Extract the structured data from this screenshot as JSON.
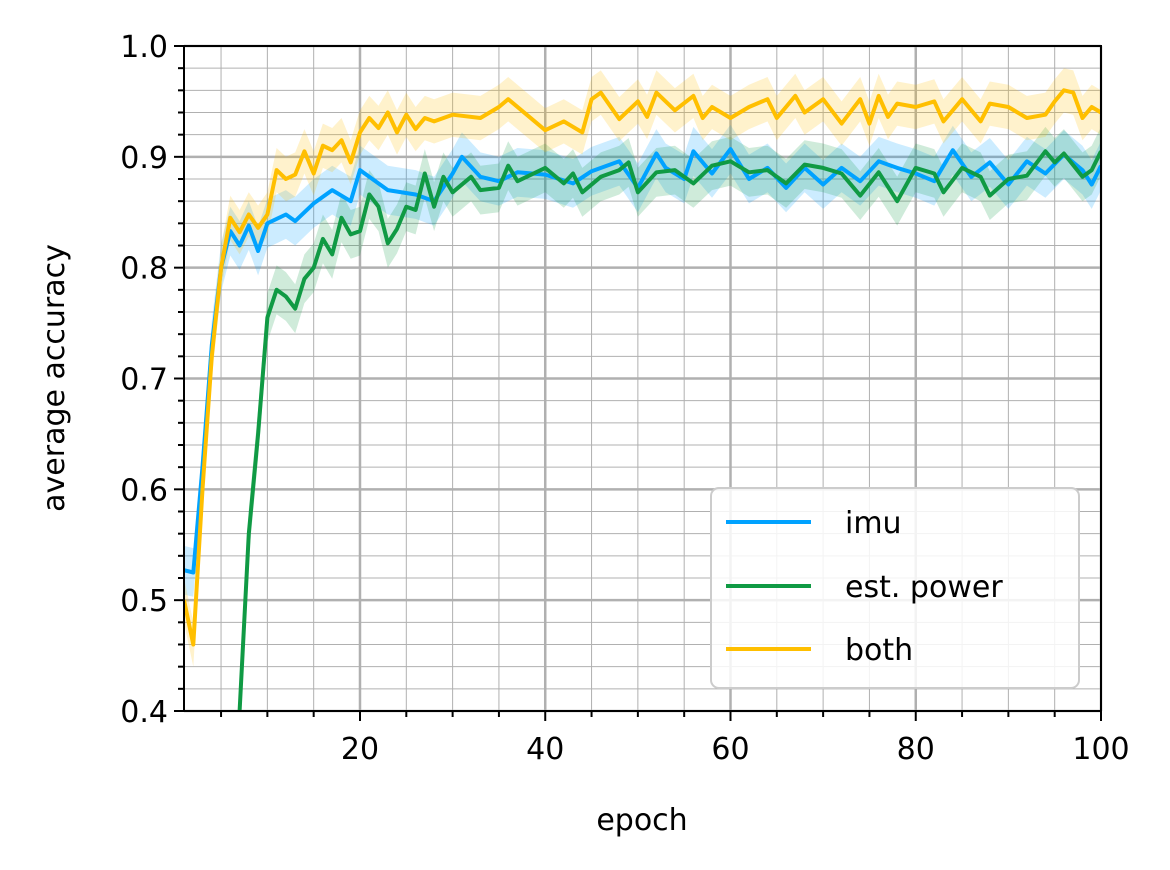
{
  "chart_data": {
    "type": "line",
    "title": "",
    "xlabel": "epoch",
    "ylabel": "average accuracy",
    "xlim": [
      1,
      100
    ],
    "ylim": [
      0.4,
      1.0
    ],
    "x_ticks": [
      20,
      40,
      60,
      80,
      100
    ],
    "x_tick_labels": [
      "20",
      "40",
      "60",
      "80",
      "100"
    ],
    "y_ticks": [
      0.4,
      0.5,
      0.6,
      0.7,
      0.8,
      0.9,
      1.0
    ],
    "y_tick_labels": [
      "0.4",
      "0.5",
      "0.6",
      "0.7",
      "0.8",
      "0.9",
      "1.0"
    ],
    "grid": true,
    "minor_grid": true,
    "legend_position": "bottom-right",
    "series": [
      {
        "name": "imu",
        "color": "#00a2ff",
        "band_width": 0.022,
        "points": [
          [
            1,
            0.527
          ],
          [
            2,
            0.525
          ],
          [
            3,
            0.62
          ],
          [
            4,
            0.73
          ],
          [
            5,
            0.8
          ],
          [
            6,
            0.833
          ],
          [
            7,
            0.82
          ],
          [
            8,
            0.838
          ],
          [
            9,
            0.815
          ],
          [
            10,
            0.84
          ],
          [
            12,
            0.848
          ],
          [
            13,
            0.842
          ],
          [
            15,
            0.858
          ],
          [
            17,
            0.87
          ],
          [
            19,
            0.86
          ],
          [
            20,
            0.888
          ],
          [
            23,
            0.87
          ],
          [
            26,
            0.866
          ],
          [
            28,
            0.86
          ],
          [
            30,
            0.885
          ],
          [
            31,
            0.9
          ],
          [
            33,
            0.882
          ],
          [
            35,
            0.878
          ],
          [
            37,
            0.886
          ],
          [
            40,
            0.884
          ],
          [
            43,
            0.876
          ],
          [
            45,
            0.887
          ],
          [
            48,
            0.896
          ],
          [
            50,
            0.872
          ],
          [
            52,
            0.903
          ],
          [
            53,
            0.89
          ],
          [
            55,
            0.88
          ],
          [
            56,
            0.905
          ],
          [
            58,
            0.885
          ],
          [
            60,
            0.907
          ],
          [
            62,
            0.88
          ],
          [
            64,
            0.89
          ],
          [
            66,
            0.872
          ],
          [
            68,
            0.89
          ],
          [
            70,
            0.875
          ],
          [
            72,
            0.89
          ],
          [
            74,
            0.878
          ],
          [
            76,
            0.896
          ],
          [
            78,
            0.89
          ],
          [
            80,
            0.885
          ],
          [
            82,
            0.878
          ],
          [
            84,
            0.906
          ],
          [
            86,
            0.882
          ],
          [
            88,
            0.895
          ],
          [
            90,
            0.875
          ],
          [
            92,
            0.896
          ],
          [
            94,
            0.885
          ],
          [
            96,
            0.902
          ],
          [
            98,
            0.888
          ],
          [
            99,
            0.875
          ],
          [
            100,
            0.892
          ]
        ]
      },
      {
        "name": "est. power",
        "color": "#109a44",
        "band_width": 0.022,
        "points": [
          [
            7,
            0.4
          ],
          [
            8,
            0.56
          ],
          [
            9,
            0.65
          ],
          [
            10,
            0.755
          ],
          [
            11,
            0.78
          ],
          [
            12,
            0.774
          ],
          [
            13,
            0.763
          ],
          [
            14,
            0.79
          ],
          [
            15,
            0.8
          ],
          [
            16,
            0.826
          ],
          [
            17,
            0.812
          ],
          [
            18,
            0.845
          ],
          [
            19,
            0.83
          ],
          [
            20,
            0.833
          ],
          [
            21,
            0.866
          ],
          [
            22,
            0.855
          ],
          [
            23,
            0.822
          ],
          [
            24,
            0.835
          ],
          [
            25,
            0.855
          ],
          [
            26,
            0.852
          ],
          [
            27,
            0.885
          ],
          [
            28,
            0.855
          ],
          [
            29,
            0.882
          ],
          [
            30,
            0.868
          ],
          [
            32,
            0.882
          ],
          [
            33,
            0.87
          ],
          [
            35,
            0.872
          ],
          [
            36,
            0.892
          ],
          [
            37,
            0.878
          ],
          [
            40,
            0.89
          ],
          [
            42,
            0.876
          ],
          [
            43,
            0.885
          ],
          [
            44,
            0.868
          ],
          [
            46,
            0.882
          ],
          [
            48,
            0.888
          ],
          [
            49,
            0.895
          ],
          [
            50,
            0.868
          ],
          [
            52,
            0.886
          ],
          [
            54,
            0.888
          ],
          [
            56,
            0.876
          ],
          [
            58,
            0.892
          ],
          [
            60,
            0.896
          ],
          [
            62,
            0.886
          ],
          [
            64,
            0.888
          ],
          [
            66,
            0.876
          ],
          [
            68,
            0.893
          ],
          [
            70,
            0.89
          ],
          [
            72,
            0.885
          ],
          [
            74,
            0.865
          ],
          [
            76,
            0.886
          ],
          [
            78,
            0.86
          ],
          [
            80,
            0.89
          ],
          [
            82,
            0.885
          ],
          [
            83,
            0.868
          ],
          [
            85,
            0.89
          ],
          [
            87,
            0.882
          ],
          [
            88,
            0.865
          ],
          [
            90,
            0.88
          ],
          [
            92,
            0.883
          ],
          [
            94,
            0.905
          ],
          [
            95,
            0.895
          ],
          [
            96,
            0.903
          ],
          [
            98,
            0.882
          ],
          [
            99,
            0.888
          ],
          [
            100,
            0.905
          ]
        ]
      },
      {
        "name": "both",
        "color": "#ffbf00",
        "band_width": 0.02,
        "points": [
          [
            1,
            0.5
          ],
          [
            2,
            0.46
          ],
          [
            3,
            0.6
          ],
          [
            4,
            0.72
          ],
          [
            5,
            0.8
          ],
          [
            6,
            0.845
          ],
          [
            7,
            0.832
          ],
          [
            8,
            0.848
          ],
          [
            9,
            0.836
          ],
          [
            10,
            0.848
          ],
          [
            11,
            0.888
          ],
          [
            12,
            0.88
          ],
          [
            13,
            0.884
          ],
          [
            14,
            0.905
          ],
          [
            15,
            0.885
          ],
          [
            16,
            0.91
          ],
          [
            17,
            0.906
          ],
          [
            18,
            0.915
          ],
          [
            19,
            0.895
          ],
          [
            20,
            0.922
          ],
          [
            21,
            0.935
          ],
          [
            22,
            0.926
          ],
          [
            23,
            0.94
          ],
          [
            24,
            0.922
          ],
          [
            25,
            0.938
          ],
          [
            26,
            0.925
          ],
          [
            27,
            0.935
          ],
          [
            28,
            0.932
          ],
          [
            30,
            0.938
          ],
          [
            33,
            0.935
          ],
          [
            35,
            0.945
          ],
          [
            36,
            0.952
          ],
          [
            38,
            0.938
          ],
          [
            40,
            0.924
          ],
          [
            42,
            0.932
          ],
          [
            44,
            0.922
          ],
          [
            45,
            0.952
          ],
          [
            46,
            0.958
          ],
          [
            48,
            0.934
          ],
          [
            50,
            0.95
          ],
          [
            51,
            0.936
          ],
          [
            52,
            0.958
          ],
          [
            54,
            0.942
          ],
          [
            56,
            0.955
          ],
          [
            57,
            0.935
          ],
          [
            58,
            0.945
          ],
          [
            60,
            0.935
          ],
          [
            62,
            0.945
          ],
          [
            64,
            0.952
          ],
          [
            65,
            0.935
          ],
          [
            67,
            0.955
          ],
          [
            68,
            0.94
          ],
          [
            70,
            0.952
          ],
          [
            72,
            0.93
          ],
          [
            74,
            0.952
          ],
          [
            75,
            0.93
          ],
          [
            76,
            0.955
          ],
          [
            77,
            0.936
          ],
          [
            78,
            0.948
          ],
          [
            80,
            0.945
          ],
          [
            82,
            0.95
          ],
          [
            83,
            0.932
          ],
          [
            85,
            0.952
          ],
          [
            87,
            0.932
          ],
          [
            88,
            0.948
          ],
          [
            90,
            0.945
          ],
          [
            92,
            0.935
          ],
          [
            94,
            0.938
          ],
          [
            95,
            0.95
          ],
          [
            96,
            0.96
          ],
          [
            97,
            0.958
          ],
          [
            98,
            0.935
          ],
          [
            99,
            0.945
          ],
          [
            100,
            0.94
          ]
        ]
      }
    ]
  }
}
